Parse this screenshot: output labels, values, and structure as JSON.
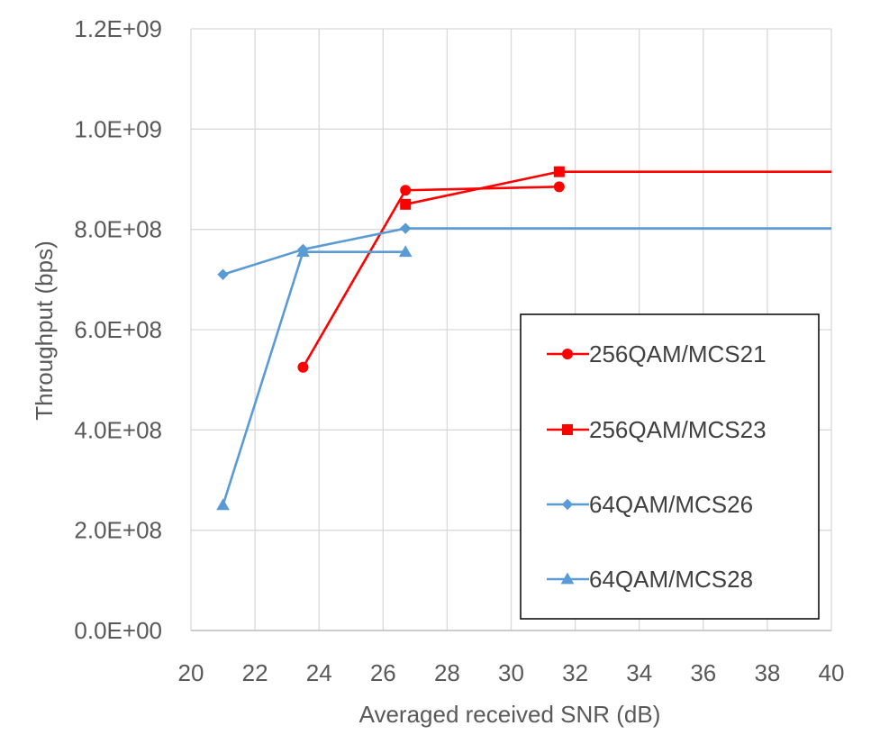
{
  "chart_data": {
    "type": "line",
    "title": "",
    "xlabel": "Averaged received SNR (dB)",
    "ylabel": "Throughput (bps)",
    "xlim": [
      20,
      40
    ],
    "ylim": [
      0,
      1200000000
    ],
    "x_ticks": [
      20,
      22,
      24,
      26,
      28,
      30,
      32,
      34,
      36,
      38,
      40
    ],
    "x_tick_labels": [
      "20",
      "22",
      "24",
      "26",
      "28",
      "30",
      "32",
      "34",
      "36",
      "38",
      "40"
    ],
    "y_ticks": [
      0,
      200000000,
      400000000,
      600000000,
      800000000,
      1000000000,
      1200000000
    ],
    "y_tick_labels": [
      "0.0E+00",
      "2.0E+08",
      "4.0E+08",
      "6.0E+08",
      "8.0E+08",
      "1.0E+09",
      "1.2E+09"
    ],
    "grid": true,
    "legend_position": "right",
    "series": [
      {
        "name": "256QAM/MCS21",
        "color": "#ff0000",
        "marker": "circle",
        "points": [
          [
            23.5,
            525000000
          ],
          [
            26.7,
            878000000
          ],
          [
            31.5,
            885000000
          ]
        ]
      },
      {
        "name": "256QAM/MCS23",
        "color": "#ff0000",
        "marker": "square",
        "points": [
          [
            26.7,
            850000000
          ],
          [
            31.5,
            915000000
          ],
          [
            40,
            915000000
          ]
        ]
      },
      {
        "name": "64QAM/MCS26",
        "color": "#5b9bd5",
        "marker": "diamond",
        "points": [
          [
            21,
            710000000
          ],
          [
            23.5,
            760000000
          ],
          [
            26.7,
            802000000
          ],
          [
            40,
            802000000
          ]
        ]
      },
      {
        "name": "64QAM/MCS28",
        "color": "#5b9bd5",
        "marker": "triangle",
        "points": [
          [
            21,
            250000000
          ],
          [
            23.5,
            755000000
          ],
          [
            26.7,
            755000000
          ]
        ]
      }
    ]
  },
  "chart_extra": {
    "mcs26_extra_points": [
      [
        26.7,
        802000000
      ],
      [
        31.5,
        802000000
      ]
    ]
  }
}
